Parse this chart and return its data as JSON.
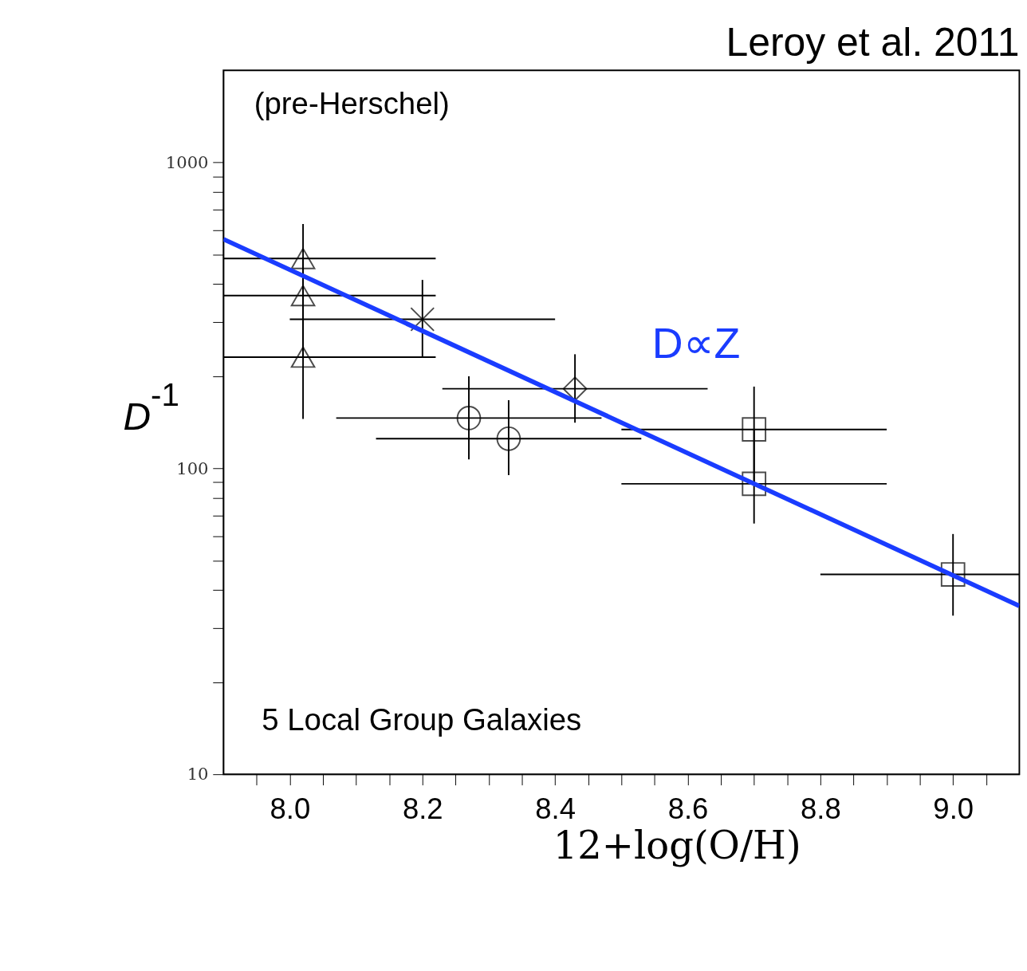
{
  "chart_data": {
    "type": "scatter",
    "title": "Leroy et al. 2011",
    "xlabel": "12+log(O/H)",
    "ylabel": "D$^{-1}$",
    "annotations": [
      "(pre-Herschel)",
      "D∝Z",
      "5 Local Group Galaxies"
    ],
    "log": "y",
    "grid": false,
    "xlim": [
      7.9,
      9.1
    ],
    "ylim": [
      10,
      2000
    ],
    "xticks": [
      {
        "value": 7.95,
        "label": null
      },
      {
        "value": 8.0,
        "label": "8.0"
      },
      {
        "value": 8.05,
        "label": null
      },
      {
        "value": 8.1,
        "label": null
      },
      {
        "value": 8.15,
        "label": null
      },
      {
        "value": 8.2,
        "label": "8.2"
      },
      {
        "value": 8.25,
        "label": null
      },
      {
        "value": 8.3,
        "label": null
      },
      {
        "value": 8.35,
        "label": null
      },
      {
        "value": 8.4,
        "label": "8.4"
      },
      {
        "value": 8.45,
        "label": null
      },
      {
        "value": 8.5,
        "label": null
      },
      {
        "value": 8.55,
        "label": null
      },
      {
        "value": 8.6,
        "label": "8.6"
      },
      {
        "value": 8.65,
        "label": null
      },
      {
        "value": 8.7,
        "label": null
      },
      {
        "value": 8.75,
        "label": null
      },
      {
        "value": 8.8,
        "label": "8.8"
      },
      {
        "value": 8.85,
        "label": null
      },
      {
        "value": 8.9,
        "label": null
      },
      {
        "value": 8.95,
        "label": null
      },
      {
        "value": 9.0,
        "label": "9.0"
      },
      {
        "value": 9.05,
        "label": null
      }
    ],
    "yticks": [
      10,
      {
        "value": 20,
        "label": null
      },
      {
        "value": 30,
        "label": null
      },
      {
        "value": 40,
        "label": null
      },
      {
        "value": 50,
        "label": null
      },
      {
        "value": 60,
        "label": null
      },
      {
        "value": 70,
        "label": null
      },
      {
        "value": 80,
        "label": null
      },
      {
        "value": 90,
        "label": null
      },
      100,
      {
        "value": 200,
        "label": null
      },
      {
        "value": 300,
        "label": null
      },
      {
        "value": 400,
        "label": null
      },
      {
        "value": 500,
        "label": null
      },
      {
        "value": 600,
        "label": null
      },
      {
        "value": 700,
        "label": null
      },
      {
        "value": 800,
        "label": null
      },
      {
        "value": 900,
        "label": null
      },
      1000
    ],
    "series": [
      {
        "marker": "triangle",
        "color": "#000000",
        "x": [
          8.02,
          8.02,
          8.02
        ],
        "values": [
          485,
          367,
          231
        ],
        "errors": [
          [
            367,
            629
          ],
          [
            231,
            485
          ],
          [
            145,
            367
          ]
        ],
        "xerrors": [
          [
            7.9,
            8.22
          ],
          [
            7.9,
            8.22
          ],
          [
            7.9,
            8.22
          ]
        ]
      },
      {
        "marker": "cross",
        "color": "#000000",
        "x": [
          8.2
        ],
        "values": [
          307
        ],
        "errors": [
          [
            231,
            413
          ]
        ],
        "xerrors": [
          [
            8.0,
            8.4
          ]
        ]
      },
      {
        "marker": "diamond",
        "color": "#000000",
        "x": [
          8.43
        ],
        "values": [
          182
        ],
        "errors": [
          [
            141,
            236
          ]
        ],
        "xerrors": [
          [
            8.23,
            8.63
          ]
        ]
      },
      {
        "marker": "circle",
        "color": "#000000",
        "x": [
          8.27,
          8.33
        ],
        "values": [
          146,
          125
        ],
        "errors": [
          [
            107,
            200
          ],
          [
            95,
            167
          ]
        ],
        "xerrors": [
          [
            8.07,
            8.47
          ],
          [
            8.13,
            8.53
          ]
        ]
      },
      {
        "marker": "square",
        "color": "#000000",
        "x": [
          8.7,
          8.7,
          9.0
        ],
        "values": [
          134,
          89,
          45
        ],
        "errors": [
          [
            89,
            185
          ],
          [
            66,
            134
          ],
          [
            33,
            61
          ]
        ],
        "xerrors": [
          [
            8.5,
            8.9
          ],
          [
            8.5,
            8.9
          ],
          [
            8.8,
            9.1
          ]
        ]
      },
      {
        "type": "line",
        "color": "#1a3cff",
        "x": [
          7.9,
          9.1
        ],
        "values": [
          561,
          35.5
        ]
      }
    ]
  }
}
